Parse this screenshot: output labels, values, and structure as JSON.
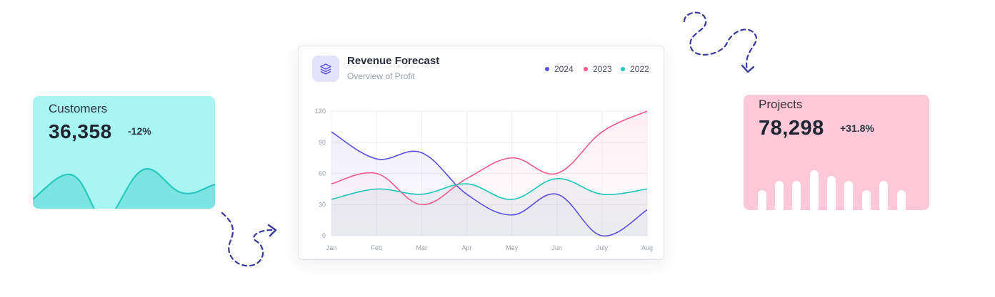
{
  "customers": {
    "title": "Customers",
    "value": "36,358",
    "delta": "-12%",
    "color": "#a8f5f4",
    "wave_color": "#2ac8bf"
  },
  "projects": {
    "title": "Projects",
    "value": "78,298",
    "delta": "+31.8%",
    "color": "#ffc9d9",
    "bar_color": "#ffffff"
  },
  "revenue": {
    "title": "Revenue Forecast",
    "subtitle": "Overview of Profit",
    "icon": "layers-icon",
    "legend": [
      {
        "label": "2024",
        "color": "#5b4fe0"
      },
      {
        "label": "2023",
        "color": "#ee5c8a"
      },
      {
        "label": "2022",
        "color": "#1ec6b7"
      }
    ]
  },
  "chart_data": {
    "type": "area",
    "categories": [
      "Jan",
      "Feb",
      "Mar",
      "Apr",
      "May",
      "Jun",
      "July",
      "Aug"
    ],
    "ylim": [
      0,
      120
    ],
    "yticks": [
      0,
      30,
      60,
      90,
      120
    ],
    "grid": true,
    "legend_position": "top-right",
    "series": [
      {
        "name": "2024",
        "color": "#5b4fe0",
        "values": [
          100,
          74,
          80,
          40,
          20,
          40,
          0,
          25
        ]
      },
      {
        "name": "2023",
        "color": "#ee5c8a",
        "values": [
          50,
          60,
          30,
          55,
          75,
          60,
          100,
          120
        ]
      },
      {
        "name": "2022",
        "color": "#1ec6b7",
        "values": [
          35,
          45,
          40,
          50,
          35,
          55,
          40,
          45
        ]
      }
    ]
  }
}
